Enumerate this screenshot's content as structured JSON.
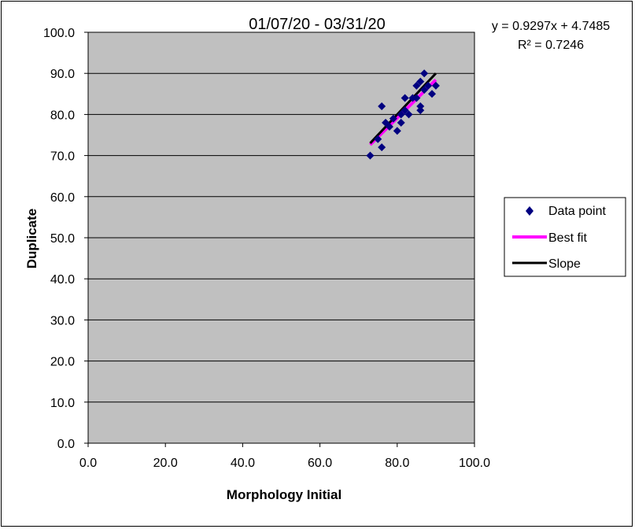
{
  "chart_data": {
    "type": "scatter",
    "title": "01/07/20 - 03/31/20",
    "xlabel": "Morphology Initial",
    "ylabel": "Duplicate",
    "xlim": [
      0,
      100
    ],
    "ylim": [
      0,
      100
    ],
    "x_ticks": [
      "0.0",
      "20.0",
      "40.0",
      "60.0",
      "80.0",
      "100.0"
    ],
    "y_ticks": [
      "0.0",
      "10.0",
      "20.0",
      "30.0",
      "40.0",
      "50.0",
      "60.0",
      "70.0",
      "80.0",
      "90.0",
      "100.0"
    ],
    "grid": true,
    "background_color": "#c0c0c0",
    "legend_position": "right",
    "equation": "y = 0.9297x + 4.7485",
    "r_squared": "R² = 0.7246",
    "series": [
      {
        "name": "Data point",
        "color": "#000080",
        "marker": "diamond",
        "points": [
          [
            73,
            70
          ],
          [
            75,
            74
          ],
          [
            76,
            72
          ],
          [
            76,
            82
          ],
          [
            77,
            78
          ],
          [
            78,
            77
          ],
          [
            79,
            79
          ],
          [
            80,
            76
          ],
          [
            81,
            78
          ],
          [
            81,
            80
          ],
          [
            82,
            81
          ],
          [
            82,
            84
          ],
          [
            83,
            80
          ],
          [
            84,
            84
          ],
          [
            85,
            84
          ],
          [
            85,
            87
          ],
          [
            86,
            88
          ],
          [
            86,
            81
          ],
          [
            86,
            82
          ],
          [
            87,
            90
          ],
          [
            87,
            86
          ],
          [
            88,
            87
          ],
          [
            89,
            85
          ],
          [
            90,
            87
          ]
        ]
      },
      {
        "name": "Best fit",
        "color": "#ff00ff",
        "type": "line",
        "x_range": [
          73,
          90
        ]
      },
      {
        "name": "Slope",
        "color": "#000000",
        "type": "line",
        "x_range": [
          73,
          90
        ]
      }
    ],
    "slope_line": {
      "slope": 1.0,
      "intercept": 0.0
    }
  }
}
